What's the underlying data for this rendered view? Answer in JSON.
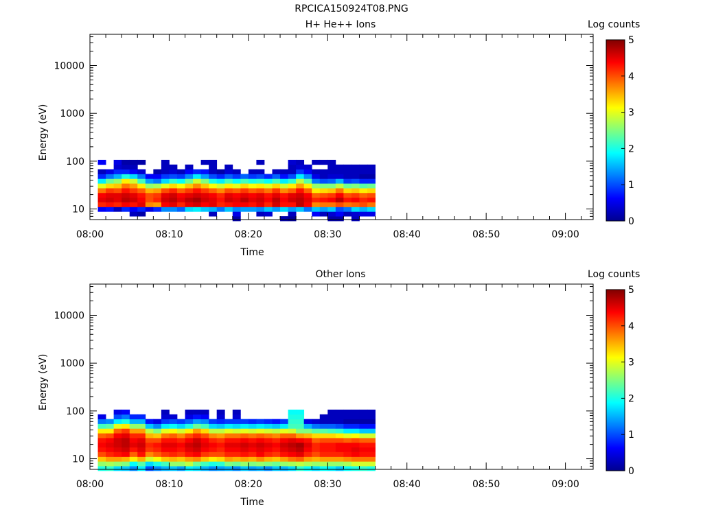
{
  "figure_title": "RPCICA150924T08.PNG",
  "chart_data": [
    {
      "type": "heatmap",
      "title": "H+ He++ Ions",
      "xlabel": "Time",
      "ylabel": "Energy (eV)",
      "x_tick_labels": [
        "08:00",
        "08:10",
        "08:20",
        "08:30",
        "08:40",
        "08:50",
        "09:00"
      ],
      "y_tick_labels": [
        "10",
        "100",
        "1000",
        "10000"
      ],
      "y_scale": "log",
      "xlim_minutes": [
        0,
        63.5
      ],
      "ylim": [
        6,
        45000
      ],
      "data_time_range_minutes": [
        1,
        35
      ],
      "colorbar": {
        "title": "Log counts",
        "range": [
          0,
          5
        ],
        "tick_labels": [
          "0",
          "1",
          "2",
          "3",
          "4",
          "5"
        ],
        "colormap": "jet"
      },
      "energy_channels_eV": [
        6.3,
        7.9,
        9.9,
        12.4,
        15.6,
        19.5,
        24.5,
        30.7,
        38.5,
        48.3,
        60.5,
        75.9,
        95.2
      ],
      "time_bins_minutes": [
        1,
        2,
        3,
        4,
        5,
        6,
        7,
        8,
        9,
        10,
        11,
        12,
        13,
        14,
        15,
        16,
        17,
        18,
        19,
        20,
        21,
        22,
        23,
        24,
        25,
        26,
        27,
        28,
        29,
        30,
        31,
        32,
        33,
        34,
        35
      ],
      "log_counts": [
        [
          null,
          null,
          null,
          null,
          null,
          null,
          null,
          null,
          null,
          null,
          null,
          null,
          null,
          null,
          null,
          null,
          null,
          0.2,
          null,
          null,
          null,
          null,
          null,
          0.2,
          0.1,
          null,
          null,
          null,
          null,
          0.2,
          0.2,
          null,
          0.3,
          null,
          null
        ],
        [
          null,
          null,
          null,
          null,
          0.3,
          0.2,
          null,
          null,
          null,
          null,
          null,
          null,
          null,
          null,
          0.3,
          null,
          null,
          0.5,
          null,
          null,
          0.3,
          0.4,
          null,
          null,
          0.3,
          null,
          null,
          0.6,
          0.3,
          0.4,
          0.6,
          0.3,
          0.4,
          0.5,
          0.5
        ],
        [
          0.6,
          0.7,
          0.3,
          0.8,
          0.6,
          0.8,
          0.5,
          0.8,
          1.3,
          1.3,
          1.1,
          1.7,
          1.8,
          1.6,
          1.5,
          1.2,
          1.6,
          1.3,
          1.4,
          1.4,
          1.3,
          1.6,
          1.4,
          1.7,
          1.4,
          1.6,
          1.2,
          1.6,
          1.4,
          1.6,
          1.0,
          1.2,
          1.7,
          1.5,
          1.7
        ],
        [
          4.2,
          4.3,
          4.2,
          4.4,
          4.3,
          4.5,
          3.7,
          3.6,
          4.4,
          4.5,
          4.2,
          4.5,
          4.6,
          4.4,
          4.5,
          4.2,
          4.3,
          4.4,
          4.4,
          4.3,
          4.5,
          4.2,
          4.6,
          4.3,
          4.3,
          4.7,
          4.4,
          3.7,
          3.8,
          3.8,
          4.0,
          3.8,
          3.9,
          4.0,
          3.8
        ],
        [
          4.5,
          4.6,
          4.5,
          4.7,
          4.6,
          4.4,
          4.0,
          4.2,
          4.6,
          4.7,
          4.5,
          4.7,
          4.8,
          4.6,
          4.5,
          4.3,
          4.6,
          4.5,
          4.7,
          4.5,
          4.6,
          4.4,
          4.7,
          4.4,
          4.6,
          4.7,
          4.5,
          4.2,
          4.3,
          4.4,
          4.7,
          4.3,
          4.4,
          4.2,
          4.3
        ],
        [
          4.4,
          4.5,
          4.5,
          4.6,
          4.5,
          4.3,
          4.0,
          4.1,
          4.5,
          4.6,
          4.4,
          4.5,
          4.6,
          4.5,
          4.4,
          4.2,
          4.5,
          4.4,
          4.5,
          4.4,
          4.5,
          4.3,
          4.5,
          4.3,
          4.5,
          4.6,
          4.4,
          3.9,
          4.0,
          4.1,
          4.4,
          4.0,
          4.1,
          3.9,
          4.0
        ],
        [
          3.8,
          4.1,
          4.0,
          4.3,
          4.1,
          3.9,
          3.5,
          3.6,
          4.0,
          4.2,
          3.9,
          4.1,
          4.3,
          4.1,
          3.9,
          3.7,
          4.0,
          3.9,
          4.1,
          3.9,
          4.0,
          3.8,
          4.1,
          3.7,
          3.9,
          4.3,
          3.9,
          3.2,
          3.3,
          3.4,
          3.8,
          3.3,
          3.4,
          3.2,
          3.3
        ],
        [
          3.0,
          3.3,
          3.4,
          3.8,
          3.6,
          3.2,
          2.6,
          2.7,
          3.0,
          3.3,
          3.1,
          3.4,
          3.7,
          3.4,
          3.1,
          2.9,
          3.2,
          3.0,
          3.3,
          3.1,
          3.2,
          3.0,
          3.3,
          2.9,
          3.2,
          3.6,
          3.2,
          2.6,
          2.5,
          2.5,
          2.8,
          2.4,
          2.5,
          2.3,
          2.4
        ],
        [
          1.8,
          2.4,
          2.6,
          3.2,
          2.9,
          2.2,
          1.4,
          1.2,
          1.7,
          2.1,
          1.9,
          2.4,
          2.9,
          2.5,
          2.0,
          1.8,
          2.2,
          1.9,
          2.2,
          2.0,
          2.1,
          1.9,
          2.2,
          1.8,
          2.1,
          2.8,
          2.3,
          1.2,
          1.0,
          1.1,
          1.5,
          0.9,
          1.0,
          0.8,
          0.8
        ],
        [
          0.8,
          1.2,
          1.5,
          2.0,
          1.7,
          1.2,
          0.6,
          0.6,
          0.9,
          1.0,
          0.9,
          1.3,
          1.8,
          1.4,
          1.0,
          0.8,
          1.1,
          0.9,
          1.1,
          0.9,
          1.0,
          0.8,
          1.1,
          0.7,
          1.0,
          1.8,
          1.3,
          0.5,
          0.3,
          0.4,
          0.4,
          0.3,
          0.3,
          0.2,
          0.2
        ],
        [
          0.3,
          0.5,
          0.8,
          0.8,
          0.6,
          0.4,
          null,
          0.2,
          0.3,
          0.4,
          0.3,
          0.6,
          0.8,
          0.7,
          0.3,
          0.2,
          0.4,
          0.3,
          null,
          0.3,
          0.3,
          null,
          0.3,
          0.3,
          0.3,
          0.9,
          0.6,
          0.3,
          0.3,
          0.3,
          0.3,
          0.3,
          0.3,
          0.3,
          0.3
        ],
        [
          null,
          null,
          0.4,
          0.3,
          0.3,
          null,
          null,
          null,
          0.3,
          0.3,
          null,
          0.3,
          null,
          null,
          0.3,
          null,
          0.3,
          null,
          null,
          null,
          null,
          null,
          null,
          null,
          0.3,
          0.4,
          0.4,
          null,
          null,
          0.3,
          0.3,
          0.3,
          0.3,
          0.3,
          0.3
        ],
        [
          0.6,
          null,
          0.5,
          0.2,
          0.2,
          0.2,
          null,
          null,
          0.3,
          null,
          null,
          null,
          null,
          0.3,
          0.3,
          null,
          null,
          null,
          null,
          null,
          0.3,
          null,
          null,
          null,
          0.4,
          0.3,
          null,
          0.3,
          0.3,
          0.3,
          null,
          null,
          null,
          null,
          null
        ]
      ]
    },
    {
      "type": "heatmap",
      "title": "Other Ions",
      "xlabel": "Time",
      "ylabel": "Energy (eV)",
      "x_tick_labels": [
        "08:00",
        "08:10",
        "08:20",
        "08:30",
        "08:40",
        "08:50",
        "09:00"
      ],
      "y_tick_labels": [
        "10",
        "100",
        "1000",
        "10000"
      ],
      "y_scale": "log",
      "xlim_minutes": [
        0,
        63.5
      ],
      "ylim": [
        6,
        45000
      ],
      "data_time_range_minutes": [
        1,
        35
      ],
      "colorbar": {
        "title": "Log counts",
        "range": [
          0,
          5
        ],
        "tick_labels": [
          "0",
          "1",
          "2",
          "3",
          "4",
          "5"
        ],
        "colormap": "jet"
      },
      "energy_channels_eV": [
        6.3,
        7.9,
        9.9,
        12.4,
        15.6,
        19.5,
        24.5,
        30.7,
        38.5,
        48.3,
        60.5,
        75.9,
        95.2
      ],
      "time_bins_minutes": [
        1,
        2,
        3,
        4,
        5,
        6,
        7,
        8,
        9,
        10,
        11,
        12,
        13,
        14,
        15,
        16,
        17,
        18,
        19,
        20,
        21,
        22,
        23,
        24,
        25,
        26,
        27,
        28,
        29,
        30,
        31,
        32,
        33,
        34,
        35
      ],
      "log_counts": [
        [
          2.0,
          2.1,
          1.7,
          1.6,
          1.3,
          1.8,
          1.0,
          1.3,
          1.5,
          1.6,
          1.4,
          1.8,
          1.7,
          1.5,
          1.3,
          1.4,
          1.5,
          1.3,
          1.6,
          1.4,
          1.5,
          1.3,
          1.6,
          1.5,
          1.7,
          2.1,
          1.9,
          1.7,
          1.9,
          1.8,
          1.6,
          1.9,
          2.0,
          2.1,
          2.0
        ],
        [
          2.6,
          2.7,
          2.6,
          2.5,
          1.9,
          2.3,
          1.7,
          2.0,
          2.2,
          2.6,
          2.6,
          2.8,
          2.4,
          2.2,
          2.0,
          2.1,
          2.5,
          2.4,
          2.6,
          2.5,
          2.6,
          2.5,
          2.4,
          2.6,
          2.7,
          2.8,
          2.7,
          2.6,
          2.7,
          2.6,
          2.6,
          2.7,
          2.9,
          2.9,
          2.9
        ],
        [
          3.4,
          3.6,
          3.6,
          3.5,
          3.2,
          3.5,
          2.9,
          3.1,
          3.4,
          3.5,
          3.4,
          3.6,
          3.7,
          3.4,
          3.2,
          3.3,
          3.6,
          3.5,
          3.6,
          3.5,
          3.7,
          3.5,
          3.4,
          3.6,
          3.8,
          3.9,
          3.6,
          3.5,
          3.6,
          3.6,
          3.6,
          3.7,
          3.8,
          3.8,
          3.8
        ],
        [
          4.0,
          4.2,
          4.3,
          4.4,
          3.9,
          4.3,
          3.7,
          3.9,
          4.1,
          4.2,
          4.1,
          4.3,
          4.4,
          4.1,
          4.0,
          4.0,
          4.2,
          4.2,
          4.3,
          4.2,
          4.4,
          4.2,
          4.1,
          4.3,
          4.4,
          4.5,
          4.2,
          4.0,
          4.2,
          4.2,
          4.2,
          4.3,
          4.4,
          4.3,
          4.3
        ],
        [
          4.3,
          4.4,
          4.5,
          4.6,
          4.3,
          4.5,
          4.1,
          4.2,
          4.4,
          4.4,
          4.3,
          4.5,
          4.6,
          4.4,
          4.3,
          4.2,
          4.4,
          4.4,
          4.5,
          4.4,
          4.5,
          4.4,
          4.3,
          4.5,
          4.6,
          4.7,
          4.4,
          4.2,
          4.3,
          4.3,
          4.4,
          4.4,
          4.5,
          4.4,
          4.4
        ],
        [
          4.4,
          4.5,
          4.6,
          4.7,
          4.5,
          4.6,
          4.2,
          4.3,
          4.5,
          4.5,
          4.4,
          4.6,
          4.7,
          4.5,
          4.4,
          4.3,
          4.5,
          4.5,
          4.6,
          4.5,
          4.6,
          4.5,
          4.4,
          4.6,
          4.7,
          4.8,
          4.5,
          4.2,
          4.3,
          4.3,
          4.4,
          4.4,
          4.4,
          4.3,
          4.3
        ],
        [
          4.3,
          4.4,
          4.6,
          4.7,
          4.4,
          4.5,
          4.0,
          4.0,
          4.3,
          4.3,
          4.2,
          4.4,
          4.6,
          4.4,
          4.2,
          4.1,
          4.3,
          4.3,
          4.4,
          4.3,
          4.4,
          4.3,
          4.2,
          4.4,
          4.5,
          4.4,
          4.3,
          3.9,
          4.0,
          4.0,
          4.0,
          3.9,
          4.0,
          3.9,
          3.9
        ],
        [
          3.9,
          4.0,
          4.4,
          4.5,
          4.2,
          4.2,
          3.5,
          3.4,
          3.8,
          3.9,
          3.7,
          4.0,
          4.2,
          4.0,
          3.7,
          3.6,
          3.8,
          3.8,
          3.9,
          3.8,
          3.9,
          3.8,
          3.7,
          3.9,
          3.9,
          3.6,
          3.5,
          3.3,
          3.3,
          3.3,
          3.2,
          3.0,
          3.1,
          2.9,
          2.9
        ],
        [
          3.2,
          3.2,
          3.9,
          4.1,
          3.6,
          3.6,
          2.8,
          2.5,
          3.0,
          3.1,
          2.9,
          3.2,
          3.6,
          3.3,
          2.8,
          2.8,
          3.0,
          2.9,
          3.0,
          2.9,
          3.0,
          2.9,
          2.8,
          3.0,
          2.9,
          2.5,
          2.5,
          2.3,
          2.3,
          2.2,
          2.1,
          1.8,
          1.8,
          1.6,
          1.6
        ],
        [
          2.2,
          2.3,
          3.0,
          3.2,
          2.6,
          2.6,
          1.6,
          1.3,
          1.8,
          1.9,
          1.7,
          2.0,
          2.4,
          2.2,
          1.7,
          1.6,
          1.8,
          1.7,
          1.8,
          1.7,
          1.8,
          1.7,
          1.6,
          1.8,
          2.2,
          2.2,
          1.5,
          1.2,
          1.1,
          1.1,
          1.0,
          0.8,
          0.8,
          0.7,
          0.7
        ],
        [
          1.2,
          1.3,
          1.8,
          2.0,
          1.5,
          1.5,
          0.7,
          0.5,
          0.9,
          1.0,
          0.9,
          1.1,
          1.4,
          1.3,
          0.9,
          0.8,
          0.9,
          0.9,
          0.9,
          0.8,
          0.9,
          0.8,
          0.7,
          0.9,
          2.1,
          2.1,
          0.5,
          0.4,
          0.3,
          0.3,
          0.3,
          0.2,
          0.2,
          0.2,
          0.2
        ],
        [
          0.5,
          null,
          1.0,
          1.2,
          0.8,
          0.8,
          null,
          null,
          0.4,
          0.4,
          null,
          0.5,
          0.7,
          0.6,
          null,
          0.4,
          null,
          0.4,
          null,
          null,
          null,
          null,
          null,
          null,
          2.0,
          2.0,
          null,
          null,
          0.3,
          0.3,
          0.3,
          0.3,
          0.3,
          0.3,
          0.3
        ],
        [
          null,
          null,
          0.5,
          0.6,
          null,
          null,
          null,
          null,
          0.3,
          null,
          null,
          0.3,
          0.3,
          0.3,
          null,
          0.3,
          null,
          0.3,
          null,
          null,
          null,
          null,
          null,
          null,
          1.9,
          1.9,
          null,
          null,
          null,
          0.3,
          0.3,
          0.3,
          0.3,
          0.3,
          0.3
        ]
      ]
    }
  ]
}
